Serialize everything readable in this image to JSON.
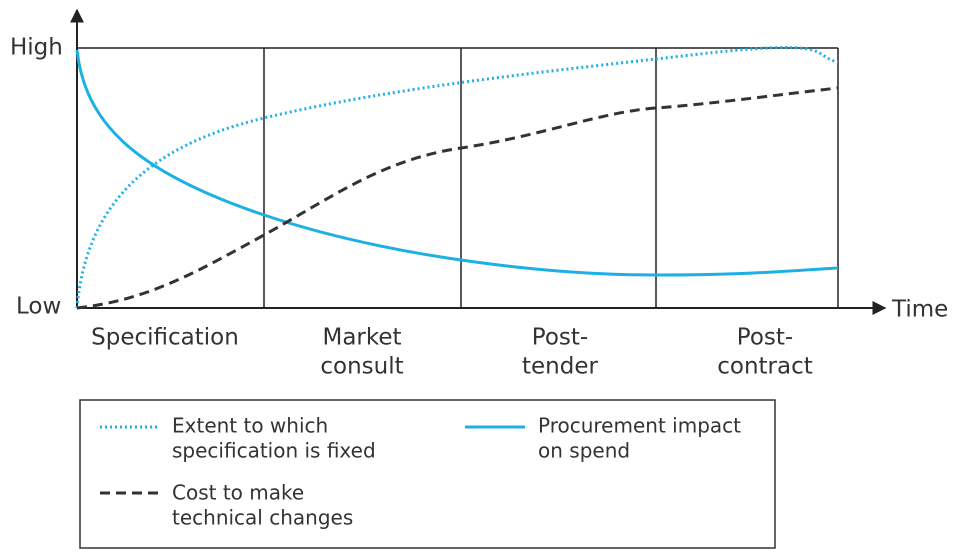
{
  "axis": {
    "high": "High",
    "low": "Low",
    "x_label": "Time"
  },
  "phases": [
    {
      "lines": [
        "Specification"
      ]
    },
    {
      "lines": [
        "Market",
        "consult"
      ]
    },
    {
      "lines": [
        "Post-",
        "tender"
      ]
    },
    {
      "lines": [
        "Post-",
        "contract"
      ]
    }
  ],
  "legend": [
    {
      "lines": [
        "Extent to which",
        "specification is fixed"
      ]
    },
    {
      "lines": [
        "Procurement impact",
        "on spend"
      ]
    },
    {
      "lines": [
        "Cost to make",
        "technical changes"
      ]
    }
  ]
}
